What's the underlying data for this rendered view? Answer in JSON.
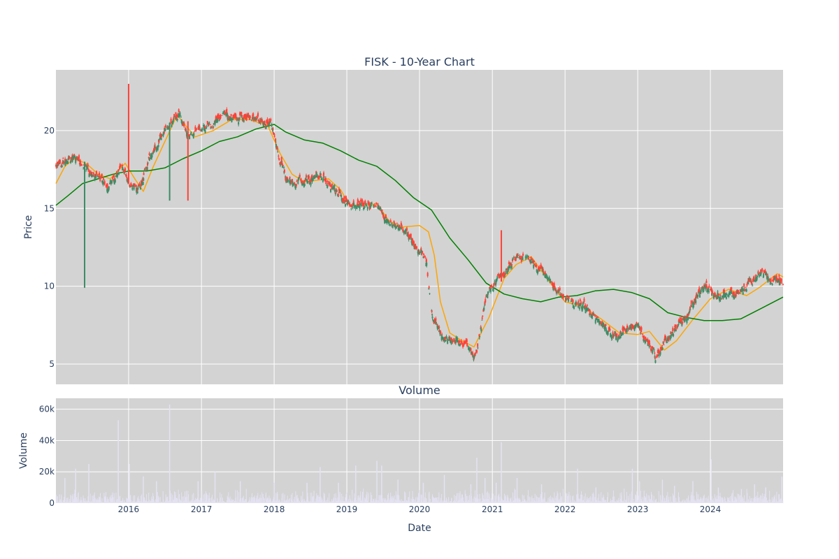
{
  "chart_data": {
    "title": "FISK - 10-Year Chart",
    "type": "candlestick",
    "x_axis": {
      "label": "Date",
      "range": [
        "2015-01-01",
        "2024-12-31"
      ],
      "tick_labels": [
        "2016",
        "2017",
        "2018",
        "2019",
        "2020",
        "2021",
        "2022",
        "2023",
        "2024"
      ]
    },
    "price_panel": {
      "ylabel": "Price",
      "ylim": [
        3.7,
        23.9
      ],
      "y_ticks": [
        5,
        10,
        15,
        20
      ],
      "y_tick_labels": [
        "5",
        "10",
        "15",
        "20"
      ],
      "grid": true,
      "background": "#d3d3d3",
      "increasing_color": "#3d8c66",
      "decreasing_color": "#ff4136",
      "anchor_closes": [
        [
          "2015-01-01",
          17.8
        ],
        [
          "2015-04-01",
          18.2
        ],
        [
          "2015-07-01",
          17.3
        ],
        [
          "2015-09-15",
          16.4
        ],
        [
          "2015-12-01",
          17.7
        ],
        [
          "2016-01-15",
          16.2
        ],
        [
          "2016-03-01",
          16.4
        ],
        [
          "2016-05-01",
          18.8
        ],
        [
          "2016-08-01",
          20.6
        ],
        [
          "2016-09-15",
          21.0
        ],
        [
          "2016-11-01",
          19.5
        ],
        [
          "2017-01-15",
          20.2
        ],
        [
          "2017-05-01",
          20.9
        ],
        [
          "2017-09-01",
          20.8
        ],
        [
          "2017-12-15",
          20.3
        ],
        [
          "2018-03-01",
          17.0
        ],
        [
          "2018-05-01",
          16.8
        ],
        [
          "2018-09-01",
          17.0
        ],
        [
          "2018-12-01",
          15.8
        ],
        [
          "2019-02-01",
          15.3
        ],
        [
          "2019-06-01",
          15.3
        ],
        [
          "2019-08-01",
          14.0
        ],
        [
          "2019-10-01",
          13.9
        ],
        [
          "2020-02-01",
          11.8
        ],
        [
          "2020-03-01",
          8.2
        ],
        [
          "2020-05-01",
          6.6
        ],
        [
          "2020-08-01",
          6.3
        ],
        [
          "2020-10-15",
          5.5
        ],
        [
          "2020-12-01",
          9.6
        ],
        [
          "2021-02-01",
          10.5
        ],
        [
          "2021-05-01",
          11.8
        ],
        [
          "2021-08-01",
          11.6
        ],
        [
          "2021-10-01",
          10.6
        ],
        [
          "2022-01-01",
          9.2
        ],
        [
          "2022-04-01",
          8.8
        ],
        [
          "2022-07-01",
          7.6
        ],
        [
          "2022-09-01",
          6.8
        ],
        [
          "2023-01-01",
          7.5
        ],
        [
          "2023-04-01",
          5.4
        ],
        [
          "2023-06-01",
          6.8
        ],
        [
          "2023-09-01",
          8.0
        ],
        [
          "2023-12-01",
          10.1
        ],
        [
          "2024-03-01",
          9.4
        ],
        [
          "2024-06-01",
          9.6
        ],
        [
          "2024-09-01",
          10.8
        ],
        [
          "2024-12-31",
          10.3
        ]
      ],
      "spikes": [
        {
          "date": "2015-05-25",
          "low": 9.9,
          "high": 18.0,
          "color": "increasing"
        },
        {
          "date": "2016-01-01",
          "low": 16.6,
          "high": 23.0,
          "color": "decreasing"
        },
        {
          "date": "2016-07-25",
          "low": 15.5,
          "high": 20.5,
          "color": "increasing"
        },
        {
          "date": "2016-10-25",
          "low": 15.5,
          "high": 20.6,
          "color": "decreasing"
        },
        {
          "date": "2021-02-15",
          "low": 10.3,
          "high": 13.6,
          "color": "decreasing"
        }
      ],
      "series": [
        {
          "color": "#ffa500",
          "points": [
            [
              "2015-01-01",
              16.6
            ],
            [
              "2015-02-15",
              17.7
            ],
            [
              "2015-04-01",
              18.2
            ],
            [
              "2015-06-01",
              17.9
            ],
            [
              "2015-08-01",
              17.2
            ],
            [
              "2015-10-01",
              16.9
            ],
            [
              "2015-12-15",
              17.9
            ],
            [
              "2016-02-01",
              16.9
            ],
            [
              "2016-03-15",
              16.1
            ],
            [
              "2016-05-01",
              17.6
            ],
            [
              "2016-07-01",
              19.3
            ],
            [
              "2016-09-01",
              21.0
            ],
            [
              "2016-10-15",
              20.3
            ],
            [
              "2016-12-01",
              19.6
            ],
            [
              "2017-03-01",
              20.0
            ],
            [
              "2017-06-01",
              20.7
            ],
            [
              "2017-09-01",
              20.7
            ],
            [
              "2017-12-01",
              20.3
            ],
            [
              "2018-02-01",
              18.5
            ],
            [
              "2018-04-01",
              17.2
            ],
            [
              "2018-06-01",
              16.7
            ],
            [
              "2018-10-01",
              16.9
            ],
            [
              "2018-12-01",
              16.2
            ],
            [
              "2019-01-15",
              15.2
            ],
            [
              "2019-04-01",
              15.2
            ],
            [
              "2019-06-01",
              15.3
            ],
            [
              "2019-08-01",
              14.2
            ],
            [
              "2019-10-01",
              13.8
            ],
            [
              "2020-01-01",
              13.9
            ],
            [
              "2020-02-15",
              13.5
            ],
            [
              "2020-03-15",
              12.0
            ],
            [
              "2020-04-15",
              9.0
            ],
            [
              "2020-06-01",
              7.0
            ],
            [
              "2020-08-01",
              6.5
            ],
            [
              "2020-10-01",
              6.1
            ],
            [
              "2020-12-15",
              8.0
            ],
            [
              "2021-03-01",
              10.5
            ],
            [
              "2021-05-01",
              11.4
            ],
            [
              "2021-07-15",
              11.9
            ],
            [
              "2021-10-01",
              10.5
            ],
            [
              "2022-01-01",
              9.0
            ],
            [
              "2022-04-01",
              8.7
            ],
            [
              "2022-07-01",
              7.9
            ],
            [
              "2022-10-01",
              7.0
            ],
            [
              "2023-01-01",
              6.9
            ],
            [
              "2023-03-01",
              7.1
            ],
            [
              "2023-05-15",
              5.9
            ],
            [
              "2023-07-15",
              6.5
            ],
            [
              "2023-10-01",
              7.8
            ],
            [
              "2024-01-01",
              9.2
            ],
            [
              "2024-04-01",
              9.8
            ],
            [
              "2024-07-01",
              9.4
            ],
            [
              "2024-09-01",
              9.9
            ],
            [
              "2024-12-01",
              10.8
            ],
            [
              "2024-12-31",
              10.6
            ]
          ]
        },
        {
          "color": "#008000",
          "points": [
            [
              "2015-01-01",
              15.2
            ],
            [
              "2015-03-01",
              15.8
            ],
            [
              "2015-05-15",
              16.6
            ],
            [
              "2015-08-01",
              16.9
            ],
            [
              "2015-10-15",
              17.2
            ],
            [
              "2016-01-01",
              17.4
            ],
            [
              "2016-04-01",
              17.4
            ],
            [
              "2016-07-01",
              17.6
            ],
            [
              "2016-10-01",
              18.2
            ],
            [
              "2017-01-01",
              18.7
            ],
            [
              "2017-04-01",
              19.3
            ],
            [
              "2017-07-01",
              19.6
            ],
            [
              "2017-10-01",
              20.1
            ],
            [
              "2018-01-01",
              20.4
            ],
            [
              "2018-03-01",
              19.9
            ],
            [
              "2018-06-01",
              19.4
            ],
            [
              "2018-09-01",
              19.2
            ],
            [
              "2018-12-01",
              18.7
            ],
            [
              "2019-03-01",
              18.1
            ],
            [
              "2019-06-01",
              17.7
            ],
            [
              "2019-09-01",
              16.8
            ],
            [
              "2019-12-01",
              15.7
            ],
            [
              "2020-03-01",
              14.9
            ],
            [
              "2020-06-01",
              13.1
            ],
            [
              "2020-09-01",
              11.7
            ],
            [
              "2020-12-01",
              10.2
            ],
            [
              "2021-03-01",
              9.5
            ],
            [
              "2021-06-01",
              9.2
            ],
            [
              "2021-09-01",
              9.0
            ],
            [
              "2021-12-01",
              9.3
            ],
            [
              "2022-03-01",
              9.4
            ],
            [
              "2022-06-01",
              9.7
            ],
            [
              "2022-09-01",
              9.8
            ],
            [
              "2022-12-01",
              9.6
            ],
            [
              "2023-03-01",
              9.2
            ],
            [
              "2023-06-01",
              8.3
            ],
            [
              "2023-09-01",
              8.0
            ],
            [
              "2023-12-01",
              7.8
            ],
            [
              "2024-03-01",
              7.8
            ],
            [
              "2024-06-01",
              7.9
            ],
            [
              "2024-09-01",
              8.5
            ],
            [
              "2024-12-31",
              9.3
            ]
          ]
        }
      ]
    },
    "volume_panel": {
      "title": "Volume",
      "ylabel": "Volume",
      "ylim": [
        0,
        67000
      ],
      "y_ticks": [
        0,
        20000,
        40000,
        60000
      ],
      "y_tick_labels": [
        "0",
        "20k",
        "40k",
        "60k"
      ],
      "grid": true,
      "background": "#d3d3d3",
      "bar_color": "#e4e2f2",
      "spikes": [
        [
          "2015-02-15",
          16000
        ],
        [
          "2015-04-10",
          22000
        ],
        [
          "2015-06-15",
          25000
        ],
        [
          "2015-11-10",
          53000
        ],
        [
          "2016-01-05",
          25000
        ],
        [
          "2016-03-15",
          17000
        ],
        [
          "2016-05-20",
          14000
        ],
        [
          "2016-07-25",
          63000
        ],
        [
          "2016-12-15",
          14000
        ],
        [
          "2017-03-10",
          20000
        ],
        [
          "2017-07-15",
          14000
        ],
        [
          "2018-01-01",
          13000
        ],
        [
          "2018-06-15",
          13000
        ],
        [
          "2018-08-20",
          23000
        ],
        [
          "2018-11-20",
          13000
        ],
        [
          "2019-02-15",
          24000
        ],
        [
          "2019-06-01",
          27000
        ],
        [
          "2019-06-25",
          24000
        ],
        [
          "2019-09-15",
          15000
        ],
        [
          "2020-01-20",
          13000
        ],
        [
          "2020-05-05",
          18000
        ],
        [
          "2020-09-15",
          12000
        ],
        [
          "2020-10-15",
          29000
        ],
        [
          "2020-11-25",
          16000
        ],
        [
          "2021-01-20",
          13000
        ],
        [
          "2021-02-15",
          39000
        ],
        [
          "2021-05-05",
          16000
        ],
        [
          "2021-09-05",
          12000
        ],
        [
          "2022-03-05",
          22000
        ],
        [
          "2022-06-05",
          10000
        ],
        [
          "2022-12-05",
          22000
        ],
        [
          "2023-01-10",
          14000
        ],
        [
          "2023-05-05",
          15000
        ],
        [
          "2023-07-05",
          11000
        ],
        [
          "2023-10-05",
          14000
        ],
        [
          "2024-01-05",
          28000
        ],
        [
          "2024-02-10",
          10000
        ],
        [
          "2024-06-05",
          9000
        ],
        [
          "2024-08-10",
          12000
        ],
        [
          "2024-10-05",
          10000
        ],
        [
          "2024-12-25",
          17000
        ]
      ]
    }
  }
}
